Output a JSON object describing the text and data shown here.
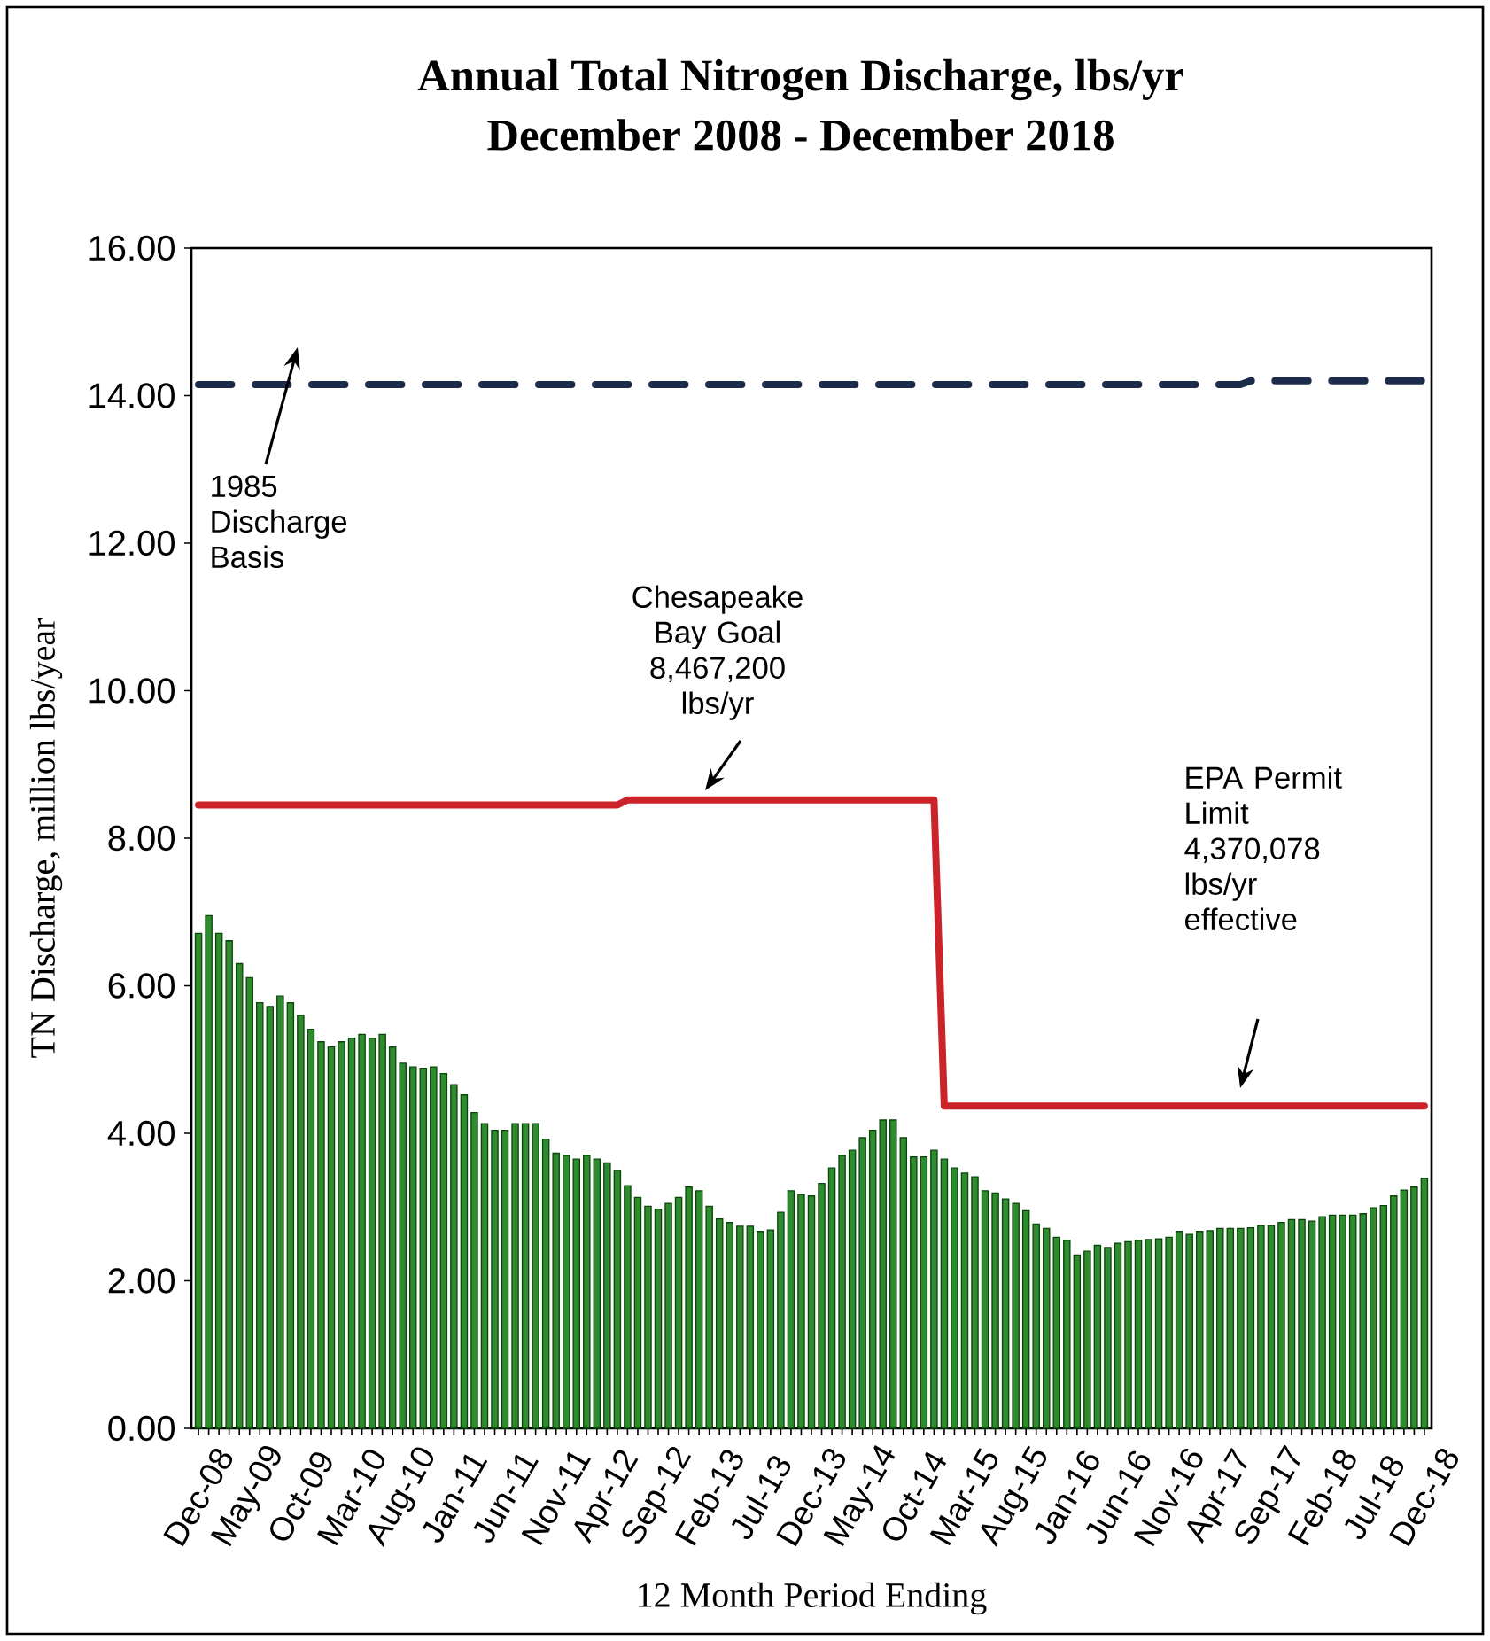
{
  "chart_data": {
    "type": "bar",
    "title": "Annual Total Nitrogen Discharge, lbs/yr",
    "subtitle": "December 2008 - December 2018",
    "xlabel": "12 Month Period Ending",
    "ylabel": "TN Discharge, million lbs/year",
    "categories": [
      "Dec-08",
      null,
      null,
      null,
      null,
      "May-09",
      null,
      null,
      null,
      null,
      "Oct-09",
      null,
      null,
      null,
      null,
      "Mar-10",
      null,
      null,
      null,
      null,
      "Aug-10",
      null,
      null,
      null,
      null,
      "Jan-11",
      null,
      null,
      null,
      null,
      "Jun-11",
      null,
      null,
      null,
      null,
      "Nov-11",
      null,
      null,
      null,
      null,
      "Apr-12",
      null,
      null,
      null,
      null,
      "Sep-12",
      null,
      null,
      null,
      null,
      "Feb-13",
      null,
      null,
      null,
      null,
      "Jul-13",
      null,
      null,
      null,
      null,
      "Dec-13",
      null,
      null,
      null,
      null,
      "May-14",
      null,
      null,
      null,
      null,
      "Oct-14",
      null,
      null,
      null,
      null,
      "Mar-15",
      null,
      null,
      null,
      null,
      "Aug-15",
      null,
      null,
      null,
      null,
      "Jan-16",
      null,
      null,
      null,
      null,
      "Jun-16",
      null,
      null,
      null,
      null,
      "Nov-16",
      null,
      null,
      null,
      null,
      "Apr-17",
      null,
      null,
      null,
      null,
      "Sep-17",
      null,
      null,
      null,
      null,
      "Feb-18",
      null,
      null,
      null,
      null,
      "Jul-18",
      null,
      null,
      null,
      null,
      "Dec-18"
    ],
    "series": [
      {
        "color": "#2e8b2e",
        "values": [
          6.71,
          6.95,
          6.71,
          6.61,
          6.3,
          6.11,
          5.77,
          5.72,
          5.86,
          5.77,
          5.6,
          5.41,
          5.24,
          5.17,
          5.24,
          5.29,
          5.34,
          5.29,
          5.34,
          5.17,
          4.95,
          4.9,
          4.88,
          4.9,
          4.81,
          4.66,
          4.52,
          4.28,
          4.13,
          4.04,
          4.04,
          4.13,
          4.13,
          4.13,
          3.92,
          3.73,
          3.7,
          3.65,
          3.7,
          3.65,
          3.6,
          3.5,
          3.29,
          3.13,
          3.01,
          2.97,
          3.05,
          3.13,
          3.27,
          3.22,
          3.01,
          2.84,
          2.79,
          2.74,
          2.74,
          2.67,
          2.69,
          2.93,
          3.22,
          3.17,
          3.15,
          3.32,
          3.53,
          3.7,
          3.77,
          3.94,
          4.04,
          4.18,
          4.18,
          3.94,
          3.68,
          3.68,
          3.77,
          3.65,
          3.53,
          3.46,
          3.41,
          3.22,
          3.19,
          3.11,
          3.05,
          2.95,
          2.77,
          2.71,
          2.59,
          2.55,
          2.35,
          2.4,
          2.48,
          2.45,
          2.51,
          2.53,
          2.55,
          2.56,
          2.57,
          2.59,
          2.67,
          2.63,
          2.67,
          2.68,
          2.71,
          2.71,
          2.71,
          2.72,
          2.75,
          2.75,
          2.79,
          2.83,
          2.83,
          2.81,
          2.87,
          2.89,
          2.89,
          2.89,
          2.91,
          2.99,
          3.02,
          3.15,
          3.23,
          3.27,
          3.39
        ]
      },
      {
        "type": "line",
        "color": "#cc2229",
        "line_style": "solid",
        "values": [
          8.45,
          8.45,
          8.45,
          8.45,
          8.45,
          8.45,
          8.45,
          8.45,
          8.45,
          8.45,
          8.45,
          8.45,
          8.45,
          8.45,
          8.45,
          8.45,
          8.45,
          8.45,
          8.45,
          8.45,
          8.45,
          8.45,
          8.45,
          8.45,
          8.45,
          8.45,
          8.45,
          8.45,
          8.45,
          8.45,
          8.45,
          8.45,
          8.45,
          8.45,
          8.45,
          8.45,
          8.45,
          8.45,
          8.45,
          8.45,
          8.45,
          8.45,
          8.52,
          8.52,
          8.52,
          8.52,
          8.52,
          8.52,
          8.52,
          8.52,
          8.52,
          8.52,
          8.52,
          8.52,
          8.52,
          8.52,
          8.52,
          8.52,
          8.52,
          8.52,
          8.52,
          8.52,
          8.52,
          8.52,
          8.52,
          8.52,
          8.52,
          8.52,
          8.52,
          8.52,
          8.52,
          8.52,
          8.52,
          4.37,
          4.37,
          4.37,
          4.37,
          4.37,
          4.37,
          4.37,
          4.37,
          4.37,
          4.37,
          4.37,
          4.37,
          4.37,
          4.37,
          4.37,
          4.37,
          4.37,
          4.37,
          4.37,
          4.37,
          4.37,
          4.37,
          4.37,
          4.37,
          4.37,
          4.37,
          4.37,
          4.37,
          4.37,
          4.37,
          4.37,
          4.37,
          4.37,
          4.37,
          4.37,
          4.37,
          4.37,
          4.37,
          4.37,
          4.37,
          4.37,
          4.37,
          4.37,
          4.37,
          4.37,
          4.37,
          4.37,
          4.37
        ]
      },
      {
        "type": "line",
        "color": "#1c2b4a",
        "line_style": "dashed",
        "values": [
          14.15,
          14.15,
          14.15,
          14.15,
          14.15,
          14.15,
          14.15,
          14.15,
          14.15,
          14.15,
          14.15,
          14.15,
          14.15,
          14.15,
          14.15,
          14.15,
          14.15,
          14.15,
          14.15,
          14.15,
          14.15,
          14.15,
          14.15,
          14.15,
          14.15,
          14.15,
          14.15,
          14.15,
          14.15,
          14.15,
          14.15,
          14.15,
          14.15,
          14.15,
          14.15,
          14.15,
          14.15,
          14.15,
          14.15,
          14.15,
          14.15,
          14.15,
          14.15,
          14.15,
          14.15,
          14.15,
          14.15,
          14.15,
          14.15,
          14.15,
          14.15,
          14.15,
          14.15,
          14.15,
          14.15,
          14.15,
          14.15,
          14.15,
          14.15,
          14.15,
          14.15,
          14.15,
          14.15,
          14.15,
          14.15,
          14.15,
          14.15,
          14.15,
          14.15,
          14.15,
          14.15,
          14.15,
          14.15,
          14.15,
          14.15,
          14.15,
          14.15,
          14.15,
          14.15,
          14.15,
          14.15,
          14.15,
          14.15,
          14.15,
          14.15,
          14.15,
          14.15,
          14.15,
          14.15,
          14.15,
          14.15,
          14.15,
          14.15,
          14.15,
          14.15,
          14.15,
          14.15,
          14.15,
          14.15,
          14.15,
          14.15,
          14.15,
          14.15,
          14.2,
          14.2,
          14.2,
          14.2,
          14.2,
          14.2,
          14.2,
          14.2,
          14.2,
          14.2,
          14.2,
          14.2,
          14.2,
          14.2,
          14.2,
          14.2,
          14.2,
          14.2
        ]
      }
    ],
    "ylim": [
      0,
      16
    ],
    "yticks": [
      {
        "value": 0,
        "label": "0.00"
      },
      {
        "value": 2,
        "label": "2.00"
      },
      {
        "value": 4,
        "label": "4.00"
      },
      {
        "value": 6,
        "label": "6.00"
      },
      {
        "value": 8,
        "label": "8.00"
      },
      {
        "value": 10,
        "label": "10.00"
      },
      {
        "value": 12,
        "label": "12.00"
      },
      {
        "value": 14,
        "label": "14.00"
      },
      {
        "value": 16,
        "label": "16.00"
      }
    ],
    "annotations": [
      "1985 Discharge Basis",
      "Chesapeake Bay Goal 8,467,200 lbs/yr",
      "EPA Permit Limit 4,370,078 lbs/yr effective"
    ]
  }
}
